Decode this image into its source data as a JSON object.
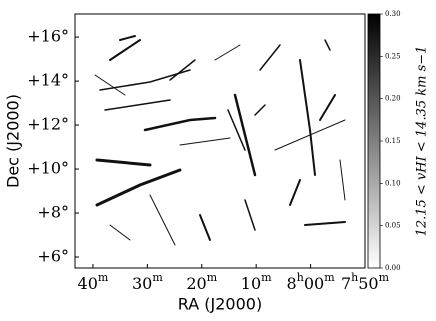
{
  "chart_data": {
    "type": "image",
    "xlabel": "RA (J2000)",
    "ylabel": "Dec (J2000)",
    "xlim": [
      523.3,
      470
    ],
    "xticks": [
      {
        "value": 520,
        "label": "40m"
      },
      {
        "value": 510,
        "label": "30m"
      },
      {
        "value": 500,
        "label": "20m"
      },
      {
        "value": 490,
        "label": "10m"
      },
      {
        "value": 480,
        "label": "8h00m"
      },
      {
        "value": 470,
        "label": "7h50m"
      }
    ],
    "ylim": [
      5.5,
      17.05
    ],
    "yticks": [
      {
        "value": 6,
        "label": "+6°"
      },
      {
        "value": 8,
        "label": "+8°"
      },
      {
        "value": 10,
        "label": "+10°"
      },
      {
        "value": 12,
        "label": "+12°"
      },
      {
        "value": 14,
        "label": "+14°"
      },
      {
        "value": 16,
        "label": "+16°"
      }
    ],
    "colorbar": {
      "label": "12.15 < vHI < 14.35 km s−1",
      "clim": [
        0,
        0.3
      ],
      "ticks": [
        {
          "value": 0,
          "label": "0.00"
        },
        {
          "value": 0.05,
          "label": "0.05"
        },
        {
          "value": 0.1,
          "label": "0.10"
        },
        {
          "value": 0.15,
          "label": "0.15"
        },
        {
          "value": 0.2,
          "label": "0.20"
        },
        {
          "value": 0.25,
          "label": "0.25"
        },
        {
          "value": 0.3,
          "label": "0.30"
        }
      ],
      "colormap": [
        "#ffffff",
        "#000000"
      ]
    }
  }
}
